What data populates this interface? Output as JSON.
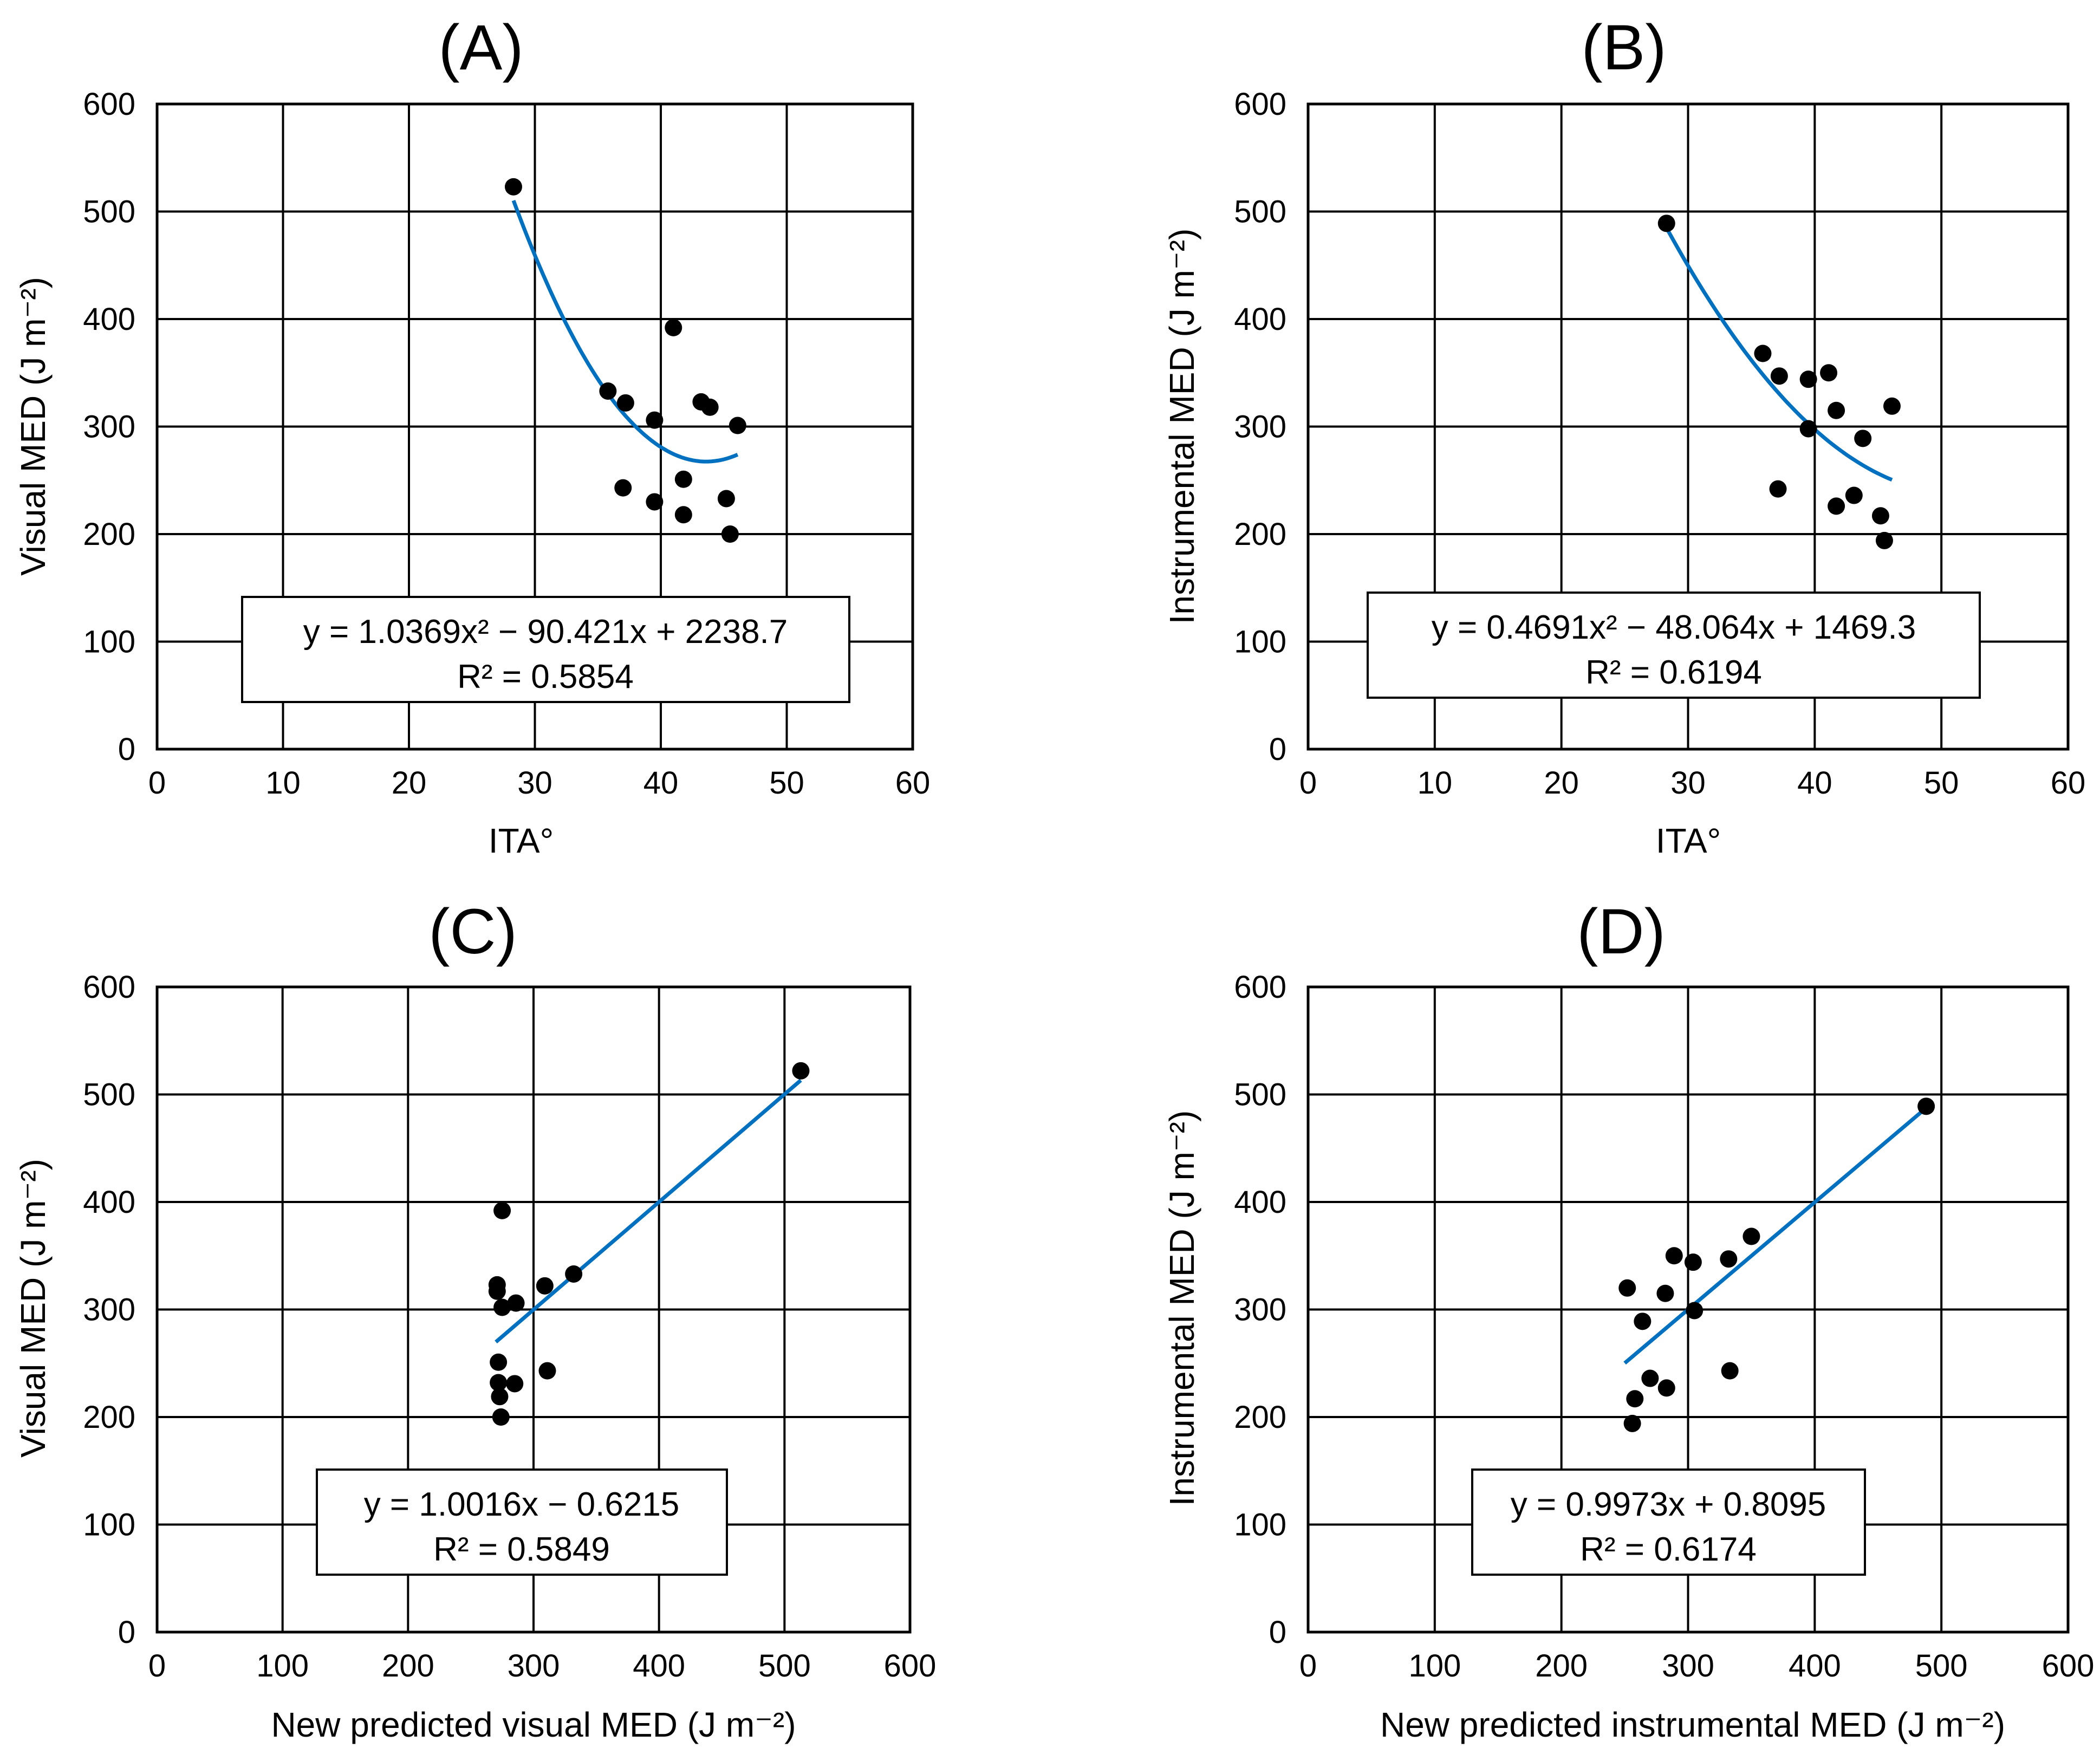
{
  "colors": {
    "points": "#000000",
    "trendline": "#0070C0",
    "grid": "#000000",
    "background": "#ffffff"
  },
  "chart_data": [
    {
      "id": "A",
      "type": "scatter",
      "title": "(A)",
      "xlabel": "ITA°",
      "ylabel": "Visual MED (J m⁻²)",
      "xlim": [
        0,
        60
      ],
      "ylim": [
        0,
        600
      ],
      "xticks": [
        0,
        10,
        20,
        30,
        40,
        50,
        60
      ],
      "yticks": [
        0,
        100,
        200,
        300,
        400,
        500,
        600
      ],
      "grid": true,
      "points": [
        [
          28.3,
          523
        ],
        [
          35.8,
          333
        ],
        [
          37.2,
          322
        ],
        [
          37.0,
          243
        ],
        [
          39.5,
          306
        ],
        [
          39.5,
          230
        ],
        [
          41.0,
          392
        ],
        [
          41.8,
          251
        ],
        [
          41.8,
          218
        ],
        [
          43.2,
          323
        ],
        [
          43.9,
          318
        ],
        [
          45.2,
          233
        ],
        [
          45.5,
          200
        ],
        [
          46.1,
          301
        ]
      ],
      "trendline": {
        "type": "polynomial",
        "a": 1.0369,
        "b": -90.421,
        "c": 2238.7,
        "xrange": [
          28.3,
          46.1
        ]
      },
      "equation": "y = 1.0369x² − 90.421x + 2238.7",
      "r2": "R² = 0.5854"
    },
    {
      "id": "B",
      "type": "scatter",
      "title": "(B)",
      "xlabel": "ITA°",
      "ylabel": "Instrumental MED (J m⁻²)",
      "xlim": [
        0,
        60
      ],
      "ylim": [
        0,
        600
      ],
      "xticks": [
        0,
        10,
        20,
        30,
        40,
        50,
        60
      ],
      "yticks": [
        0,
        100,
        200,
        300,
        400,
        500,
        600
      ],
      "grid": true,
      "points": [
        [
          28.3,
          489
        ],
        [
          35.9,
          368
        ],
        [
          37.2,
          347
        ],
        [
          37.1,
          242
        ],
        [
          39.5,
          344
        ],
        [
          39.5,
          298
        ],
        [
          41.1,
          350
        ],
        [
          41.7,
          315
        ],
        [
          41.7,
          226
        ],
        [
          43.1,
          236
        ],
        [
          43.8,
          289
        ],
        [
          45.2,
          217
        ],
        [
          45.5,
          194
        ],
        [
          46.1,
          319
        ]
      ],
      "trendline": {
        "type": "polynomial",
        "a": 0.4691,
        "b": -48.064,
        "c": 1469.3,
        "xrange": [
          28.3,
          46.1
        ]
      },
      "equation": "y = 0.4691x² − 48.064x + 1469.3",
      "r2": "R² = 0.6194"
    },
    {
      "id": "C",
      "type": "scatter",
      "title": "(C)",
      "xlabel": "New predicted visual MED (J m⁻²)",
      "ylabel": "Visual MED (J m⁻²)",
      "xlim": [
        0,
        600
      ],
      "ylim": [
        0,
        600
      ],
      "xticks": [
        0,
        100,
        200,
        300,
        400,
        500,
        600
      ],
      "yticks": [
        0,
        100,
        200,
        300,
        400,
        500,
        600
      ],
      "grid": true,
      "points": [
        [
          513,
          522
        ],
        [
          332,
          333
        ],
        [
          309,
          322
        ],
        [
          271,
          323
        ],
        [
          271,
          317
        ],
        [
          275,
          392
        ],
        [
          286,
          306
        ],
        [
          275,
          302
        ],
        [
          311,
          243
        ],
        [
          272,
          251
        ],
        [
          272,
          232
        ],
        [
          285,
          231
        ],
        [
          273,
          219
        ],
        [
          274,
          200
        ]
      ],
      "trendline": {
        "type": "linear",
        "m": 1.0016,
        "b": -0.6215,
        "xrange": [
          270,
          513
        ]
      },
      "equation": "y = 1.0016x − 0.6215",
      "r2": "R² = 0.5849"
    },
    {
      "id": "D",
      "type": "scatter",
      "title": "(D)",
      "xlabel": "New predicted instrumental MED (J m⁻²)",
      "ylabel": "Instrumental MED (J m⁻²)",
      "xlim": [
        0,
        600
      ],
      "ylim": [
        0,
        600
      ],
      "xticks": [
        0,
        100,
        200,
        300,
        400,
        500,
        600
      ],
      "yticks": [
        0,
        100,
        200,
        300,
        400,
        500,
        600
      ],
      "grid": true,
      "points": [
        [
          488,
          489
        ],
        [
          350,
          368
        ],
        [
          332,
          347
        ],
        [
          289,
          350
        ],
        [
          304,
          344
        ],
        [
          252,
          320
        ],
        [
          282,
          315
        ],
        [
          264,
          289
        ],
        [
          305,
          299
        ],
        [
          333,
          243
        ],
        [
          270,
          236
        ],
        [
          283,
          227
        ],
        [
          258,
          217
        ],
        [
          256,
          194
        ]
      ],
      "trendline": {
        "type": "linear",
        "m": 0.9973,
        "b": 0.8095,
        "xrange": [
          250,
          488
        ]
      },
      "equation": "y = 0.9973x + 0.8095",
      "r2": "R² = 0.6174"
    }
  ]
}
